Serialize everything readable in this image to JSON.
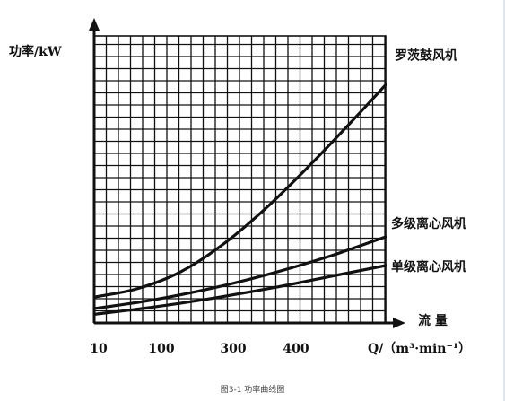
{
  "chart_data": {
    "type": "line",
    "title": "",
    "ylabel": "功率/kW",
    "xlabel_top": "流 量",
    "xlabel_unit": "Q/（m³·min⁻¹）",
    "grid": true,
    "x_ticks": [
      "10",
      "100",
      "300",
      "400"
    ],
    "x_domain": [
      0,
      1
    ],
    "y_domain": [
      0,
      1
    ],
    "series": [
      {
        "name": "罗茨鼓风机",
        "color": "#111111",
        "points": [
          [
            0.0,
            0.09
          ],
          [
            0.15,
            0.12
          ],
          [
            0.3,
            0.18
          ],
          [
            0.45,
            0.28
          ],
          [
            0.6,
            0.41
          ],
          [
            0.75,
            0.56
          ],
          [
            0.9,
            0.72
          ],
          [
            1.0,
            0.83
          ]
        ]
      },
      {
        "name": "多级离心风机",
        "color": "#111111",
        "points": [
          [
            0.0,
            0.05
          ],
          [
            0.2,
            0.08
          ],
          [
            0.4,
            0.12
          ],
          [
            0.6,
            0.17
          ],
          [
            0.8,
            0.23
          ],
          [
            1.0,
            0.3
          ]
        ]
      },
      {
        "name": "单级离心风机",
        "color": "#111111",
        "points": [
          [
            0.0,
            0.03
          ],
          [
            0.2,
            0.055
          ],
          [
            0.4,
            0.085
          ],
          [
            0.6,
            0.12
          ],
          [
            0.8,
            0.16
          ],
          [
            1.0,
            0.2
          ]
        ]
      }
    ]
  },
  "caption": "图3-1  功率曲线图"
}
